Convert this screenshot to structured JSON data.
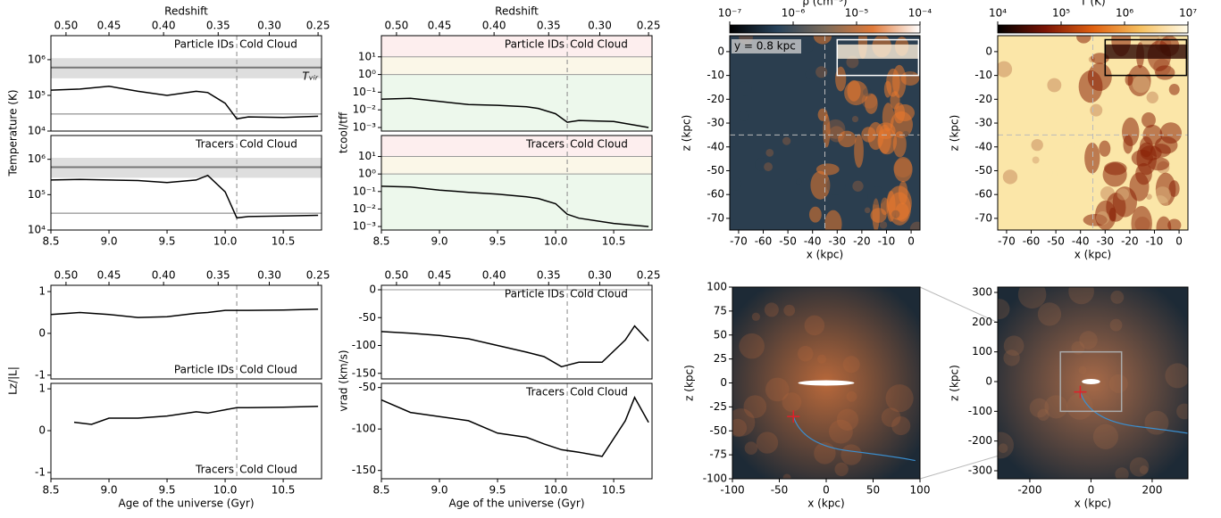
{
  "chart_data": [
    {
      "type": "line",
      "xlim": [
        8.5,
        10.83
      ],
      "ylim": [
        10000,
        4700000
      ],
      "ylog": true,
      "yticks": [
        {
          "value": 10000,
          "label": "10⁴"
        },
        {
          "value": 100000,
          "label": "10⁵"
        },
        {
          "value": 1000000,
          "label": "10⁶"
        }
      ],
      "x2label": "Redshift",
      "x2ticks": [
        {
          "value": 0.5,
          "label": "0.50"
        },
        0.45,
        {
          "value": 0.4,
          "label": "0.40"
        },
        0.35,
        {
          "value": 0.3,
          "label": "0.30"
        },
        0.25
      ],
      "x2ages": [
        8.63,
        9.0,
        9.47,
        9.94,
        10.38,
        10.8
      ],
      "ylabel": "Temperature (K)",
      "labels": [
        "Particle IDs",
        "Cold Cloud"
      ],
      "label_side": "top",
      "vline": 10.1,
      "bands": [
        {
          "from": 300000,
          "to": 1100000,
          "color": "#dedede"
        }
      ],
      "hlines": [
        {
          "value": 600000,
          "color": "#777777",
          "width": 2
        },
        {
          "value": 30000,
          "color": "#777777",
          "width": 1
        }
      ],
      "band_label": "Tᵥᵢᵣ",
      "x": [
        8.5,
        8.75,
        9.0,
        9.25,
        9.5,
        9.75,
        9.85,
        10.0,
        10.1,
        10.2,
        10.5,
        10.8
      ],
      "series": [
        {
          "color": "#000000",
          "values": [
            140000,
            150000,
            180000,
            130000,
            100000,
            130000,
            120000,
            60000,
            22000,
            25000,
            24000,
            26000
          ]
        }
      ]
    },
    {
      "type": "line",
      "xlim": [
        8.5,
        10.83
      ],
      "ylim": [
        10000,
        4700000
      ],
      "ylog": true,
      "yticks": [
        {
          "value": 10000,
          "label": "10⁴"
        },
        {
          "value": 100000,
          "label": "10⁵"
        },
        {
          "value": 1000000,
          "label": "10⁶"
        }
      ],
      "xticks": [
        8.5,
        {
          "value": 9,
          "label": "9.0"
        },
        9.5,
        {
          "value": 10,
          "label": "10.0"
        },
        10.5
      ],
      "labels": [
        "Tracers",
        "Cold Cloud"
      ],
      "label_side": "top",
      "vline": 10.1,
      "bands": [
        {
          "from": 300000,
          "to": 1100000,
          "color": "#dedede"
        }
      ],
      "hlines": [
        {
          "value": 600000,
          "color": "#777777",
          "width": 2
        },
        {
          "value": 30000,
          "color": "#777777",
          "width": 1
        }
      ],
      "x": [
        8.5,
        8.75,
        9.0,
        9.25,
        9.5,
        9.75,
        9.85,
        10.0,
        10.1,
        10.2,
        10.5,
        10.8
      ],
      "series": [
        {
          "color": "#000000",
          "values": [
            260000,
            270000,
            260000,
            250000,
            220000,
            260000,
            350000,
            120000,
            22000,
            24000,
            25000,
            26000
          ]
        }
      ]
    },
    {
      "type": "line",
      "xlim": [
        8.5,
        10.83
      ],
      "ylim": [
        0.00063,
        158
      ],
      "ylog": true,
      "yticks": [
        {
          "value": 0.001,
          "label": "10⁻³"
        },
        {
          "value": 0.01,
          "label": "10⁻²"
        },
        {
          "value": 0.1,
          "label": "10⁻¹"
        },
        {
          "value": 1,
          "label": "10⁰"
        },
        {
          "value": 10,
          "label": "10¹"
        }
      ],
      "x2label": "Redshift",
      "x2ticks": [
        {
          "value": 0.5,
          "label": "0.50"
        },
        0.45,
        {
          "value": 0.4,
          "label": "0.40"
        },
        0.35,
        {
          "value": 0.3,
          "label": "0.30"
        },
        0.25
      ],
      "x2ages": [
        8.63,
        9.0,
        9.47,
        9.94,
        10.38,
        10.8
      ],
      "ylabel": "tcool/tff",
      "labels": [
        "Particle IDs",
        "Cold Cloud"
      ],
      "label_side": "top",
      "vline": 10.1,
      "bands": [
        {
          "from": 10,
          "to": 158,
          "color": "#fdeeee"
        },
        {
          "from": 1,
          "to": 10,
          "color": "#fbf7e8"
        },
        {
          "from": 0.00063,
          "to": 1,
          "color": "#edf8ec"
        }
      ],
      "hlines": [
        {
          "value": 1,
          "color": "#999999",
          "width": 1
        },
        {
          "value": 10,
          "color": "#999999",
          "width": 1
        }
      ],
      "x": [
        8.5,
        8.75,
        9.0,
        9.25,
        9.5,
        9.75,
        9.85,
        10.0,
        10.1,
        10.2,
        10.5,
        10.8
      ],
      "series": [
        {
          "color": "#000000",
          "values": [
            0.04,
            0.045,
            0.03,
            0.02,
            0.018,
            0.015,
            0.012,
            0.006,
            0.002,
            0.0025,
            0.0022,
            0.001
          ]
        }
      ]
    },
    {
      "type": "line",
      "xlim": [
        8.5,
        10.83
      ],
      "ylim": [
        0.00063,
        158
      ],
      "ylog": true,
      "yticks": [
        {
          "value": 0.001,
          "label": "10⁻³"
        },
        {
          "value": 0.01,
          "label": "10⁻²"
        },
        {
          "value": 0.1,
          "label": "10⁻¹"
        },
        {
          "value": 1,
          "label": "10⁰"
        },
        {
          "value": 10,
          "label": "10¹"
        }
      ],
      "xticks": [
        8.5,
        {
          "value": 9,
          "label": "9.0"
        },
        9.5,
        {
          "value": 10,
          "label": "10.0"
        },
        10.5
      ],
      "labels": [
        "Tracers",
        "Cold Cloud"
      ],
      "label_side": "top",
      "vline": 10.1,
      "bands": [
        {
          "from": 10,
          "to": 158,
          "color": "#fdeeee"
        },
        {
          "from": 1,
          "to": 10,
          "color": "#fbf7e8"
        },
        {
          "from": 0.00063,
          "to": 1,
          "color": "#edf8ec"
        }
      ],
      "hlines": [
        {
          "value": 1,
          "color": "#999999",
          "width": 1
        },
        {
          "value": 10,
          "color": "#999999",
          "width": 1
        }
      ],
      "x": [
        8.5,
        8.75,
        9.0,
        9.25,
        9.5,
        9.75,
        9.85,
        10.0,
        10.1,
        10.2,
        10.5,
        10.8
      ],
      "series": [
        {
          "color": "#000000",
          "values": [
            0.2,
            0.18,
            0.12,
            0.09,
            0.07,
            0.05,
            0.04,
            0.02,
            0.005,
            0.003,
            0.0015,
            0.001
          ]
        }
      ]
    },
    {
      "type": "line",
      "xlim": [
        8.5,
        10.83
      ],
      "ylim": [
        -1.09,
        1.15
      ],
      "yticks": [
        -1,
        0,
        1
      ],
      "x2ticks": [
        {
          "value": 0.5,
          "label": "0.50"
        },
        0.45,
        {
          "value": 0.4,
          "label": "0.40"
        },
        0.35,
        {
          "value": 0.3,
          "label": "0.30"
        },
        0.25
      ],
      "x2ages": [
        8.63,
        9.0,
        9.47,
        9.94,
        10.38,
        10.8
      ],
      "ylabel": "Lz/|L|",
      "labels": [
        "Particle IDs",
        "Cold Cloud"
      ],
      "label_side": "bottom",
      "vline": 10.1,
      "x": [
        8.5,
        8.75,
        9.0,
        9.25,
        9.5,
        9.75,
        9.85,
        10.0,
        10.1,
        10.2,
        10.5,
        10.8
      ],
      "series": [
        {
          "color": "#000000",
          "values": [
            0.45,
            0.5,
            0.45,
            0.38,
            0.4,
            0.48,
            0.5,
            0.55,
            0.55,
            0.55,
            0.56,
            0.58
          ]
        }
      ]
    },
    {
      "type": "line",
      "xlim": [
        8.5,
        10.83
      ],
      "ylim": [
        -1.15,
        1.13
      ],
      "yticks": [
        -1,
        0,
        1
      ],
      "xticks": [
        8.5,
        {
          "value": 9,
          "label": "9.0"
        },
        9.5,
        {
          "value": 10,
          "label": "10.0"
        },
        10.5
      ],
      "xlabel": "Age of the universe (Gyr)",
      "labels": [
        "Tracers",
        "Cold Cloud"
      ],
      "label_side": "bottom",
      "vline": 10.1,
      "x": [
        8.7,
        8.85,
        9.0,
        9.25,
        9.5,
        9.75,
        9.85,
        10.0,
        10.1,
        10.2,
        10.5,
        10.8
      ],
      "series": [
        {
          "color": "#000000",
          "values": [
            0.2,
            0.15,
            0.3,
            0.3,
            0.35,
            0.45,
            0.42,
            0.5,
            0.55,
            0.55,
            0.56,
            0.58
          ]
        }
      ]
    },
    {
      "type": "line",
      "xlim": [
        8.5,
        10.83
      ],
      "ylim": [
        -160,
        8
      ],
      "yticks": [
        0,
        -50,
        -100,
        -150
      ],
      "x2ticks": [
        {
          "value": 0.5,
          "label": "0.50"
        },
        0.45,
        {
          "value": 0.4,
          "label": "0.40"
        },
        0.35,
        {
          "value": 0.3,
          "label": "0.30"
        },
        0.25
      ],
      "x2ages": [
        8.63,
        9.0,
        9.47,
        9.94,
        10.38,
        10.8
      ],
      "ylabel": "vrad (km/s)",
      "labels": [
        "Particle IDs",
        "Cold Cloud"
      ],
      "label_side": "top",
      "vline": 10.1,
      "hlines": [
        {
          "value": 0,
          "color": "#999999",
          "width": 1
        }
      ],
      "x": [
        8.5,
        8.75,
        9.0,
        9.25,
        9.5,
        9.75,
        9.9,
        10.05,
        10.2,
        10.4,
        10.6,
        10.68,
        10.8
      ],
      "series": [
        {
          "color": "#000000",
          "values": [
            -75,
            -78,
            -82,
            -88,
            -100,
            -112,
            -120,
            -138,
            -130,
            -130,
            -90,
            -65,
            -92
          ]
        }
      ]
    },
    {
      "type": "line",
      "xlim": [
        8.5,
        10.83
      ],
      "ylim": [
        -160,
        -45
      ],
      "yticks": [
        -50,
        -100,
        -150
      ],
      "xticks": [
        8.5,
        {
          "value": 9,
          "label": "9.0"
        },
        9.5,
        {
          "value": 10,
          "label": "10.0"
        },
        10.5
      ],
      "xlabel": "Age of the universe (Gyr)",
      "labels": [
        "Tracers",
        "Cold Cloud"
      ],
      "label_side": "top",
      "vline": 10.1,
      "x": [
        8.5,
        8.75,
        9.0,
        9.25,
        9.5,
        9.75,
        9.9,
        10.05,
        10.2,
        10.4,
        10.6,
        10.68,
        10.8
      ],
      "series": [
        {
          "color": "#000000",
          "values": [
            -65,
            -80,
            -85,
            -90,
            -105,
            -110,
            -118,
            -125,
            -128,
            -133,
            -90,
            -62,
            -92
          ]
        }
      ]
    },
    {
      "type": "image",
      "xlim": [
        -73.6,
        3.6
      ],
      "ylim": [
        -74.9,
        6.7
      ],
      "xticks": [
        -70,
        -60,
        -50,
        -40,
        -30,
        -20,
        -10,
        0
      ],
      "yticks": [
        -70,
        -60,
        -50,
        -40,
        -30,
        -20,
        -10,
        0
      ],
      "xlabel": "x (kpc)",
      "ylabel": "z (kpc)",
      "colors": [
        "#2b3e4f",
        "#e8782e",
        "#fff1dc"
      ],
      "style": "clumps",
      "annotation": "y = 0.8 kpc",
      "crosshair": [
        -35,
        -35
      ],
      "inset": [
        -30,
        -10,
        3,
        5
      ],
      "inset_color": "#ffffff",
      "colorbar": {
        "label": "ρ (cm⁻³)",
        "lim": [
          1e-07,
          0.0001
        ],
        "log": true,
        "colors": [
          "#000000",
          "#27425a",
          "#7a6a5a",
          "#e07a3a",
          "#ffffff"
        ],
        "ticks": [
          {
            "value": 1e-07,
            "label": "10⁻⁷"
          },
          {
            "value": 1e-06,
            "label": "10⁻⁶"
          },
          {
            "value": 1e-05,
            "label": "10⁻⁵"
          },
          {
            "value": 0.0001,
            "label": "10⁻⁴"
          }
        ]
      }
    },
    {
      "type": "image",
      "xlim": [
        -73.6,
        3.6
      ],
      "ylim": [
        -74.9,
        6.7
      ],
      "xticks": [
        -70,
        -60,
        -50,
        -40,
        -30,
        -20,
        -10,
        0
      ],
      "yticks": [
        -70,
        -60,
        -50,
        -40,
        -30,
        -20,
        -10,
        0
      ],
      "xlabel": "x (kpc)",
      "ylabel": "z (kpc)",
      "colors": [
        "#fbe6a8",
        "#8a2208",
        "#2a0500"
      ],
      "style": "clumps",
      "crosshair": [
        -35,
        -35
      ],
      "inset": [
        -30,
        -10,
        3,
        5
      ],
      "inset_color": "#000000",
      "colorbar": {
        "label": "T (K)",
        "lim": [
          10000,
          10000000
        ],
        "log": true,
        "colors": [
          "#000000",
          "#7a1405",
          "#e06010",
          "#f6c060",
          "#fffbe8"
        ],
        "ticks": [
          {
            "value": 10000,
            "label": "10⁴"
          },
          {
            "value": 100000,
            "label": "10⁵"
          },
          {
            "value": 1000000,
            "label": "10⁶"
          },
          {
            "value": 10000000,
            "label": "10⁷"
          }
        ]
      }
    },
    {
      "type": "image",
      "xlim": [
        -100,
        100
      ],
      "ylim": [
        -100,
        100
      ],
      "xticks": [
        -100,
        -50,
        0,
        50,
        100
      ],
      "yticks": [
        -100,
        -75,
        -50,
        -25,
        0,
        25,
        50,
        75,
        100
      ],
      "xlabel": "x (kpc)",
      "ylabel": "z (kpc)",
      "colors": [
        "#1d2a36",
        "#b8683a",
        "#ffffff"
      ],
      "style": "halo",
      "marker": [
        -35,
        -35
      ]
    },
    {
      "type": "image",
      "xlim": [
        -305,
        317
      ],
      "ylim": [
        -327,
        318
      ],
      "xticks": [
        -200,
        0,
        200
      ],
      "yticks": [
        -300,
        -200,
        -100,
        0,
        100,
        200,
        300
      ],
      "xlabel": "x (kpc)",
      "ylabel": "z (kpc)",
      "colors": [
        "#1d2a36",
        "#a86a48",
        "#ffffff"
      ],
      "style": "halo",
      "marker": [
        -35,
        -35
      ],
      "inset": [
        -100,
        -100,
        100,
        100
      ],
      "inset_color": "#aaaaaa"
    }
  ]
}
